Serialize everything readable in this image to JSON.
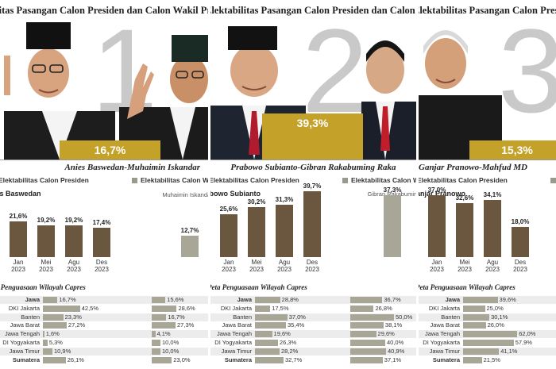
{
  "header_title": "Elektabilitas Pasangan Calon Presiden dan Calon Wakil Presiden",
  "panels": [
    {
      "number": "1",
      "percent": "16,7%",
      "pair_name": "Anies Baswedan-Muhaimin Iskandar",
      "sec_pres": "Elektabilitas Calon Presiden",
      "sec_vp": "Elektabilitas Calon Wakil Presiden",
      "cand_label": "Anies Baswedan",
      "vp_label": "Muhaimin Iskandar",
      "vp_value": "12,7%",
      "vp_num": 12.7,
      "bars": [
        {
          "label": "Jan 2023",
          "value": "21,6%",
          "num": 21.6
        },
        {
          "label": "Mei 2023",
          "value": "19,2%",
          "num": 19.2
        },
        {
          "label": "Agu 2023",
          "value": "19,2%",
          "num": 19.2
        },
        {
          "label": "Des 2023",
          "value": "17,4%",
          "num": 17.4
        }
      ],
      "regions": [
        {
          "name": "Jawa",
          "bold": true,
          "a": "16,7%",
          "an": 16.7,
          "b": "15,6%",
          "bn": 15.6
        },
        {
          "name": "DKI Jakarta",
          "bold": false,
          "a": "42,5%",
          "an": 42.5,
          "b": "28,6%",
          "bn": 28.6
        },
        {
          "name": "Banten",
          "bold": false,
          "a": "23,3%",
          "an": 23.3,
          "b": "16,7%",
          "bn": 16.7
        },
        {
          "name": "Jawa Barat",
          "bold": false,
          "a": "27,2%",
          "an": 27.2,
          "b": "27,3%",
          "bn": 27.3
        },
        {
          "name": "Jawa Tengah",
          "bold": false,
          "a": "1,6%",
          "an": 1.6,
          "b": "4,1%",
          "bn": 4.1
        },
        {
          "name": "DI Yogyakarta",
          "bold": false,
          "a": "5,3%",
          "an": 5.3,
          "b": "10,0%",
          "bn": 10.0
        },
        {
          "name": "Jawa Timur",
          "bold": false,
          "a": "10,9%",
          "an": 10.9,
          "b": "10,0%",
          "bn": 10.0
        },
        {
          "name": "Sumatera",
          "bold": true,
          "a": "26,1%",
          "an": 26.1,
          "b": "23,0%",
          "bn": 23.0
        }
      ]
    },
    {
      "number": "2",
      "percent": "39,3%",
      "pair_name": "Prabowo Subianto-Gibran Rakabuming Raka",
      "sec_pres": "Elektabilitas Calon Presiden",
      "sec_vp": "Elektabilitas Calon Wakil Presiden",
      "cand_label": "Prabowo Subianto",
      "vp_label": "Gibran Rakabuming Raka",
      "vp_value": "37,3%",
      "vp_num": 37.3,
      "bars": [
        {
          "label": "Jan 2023",
          "value": "25,6%",
          "num": 25.6
        },
        {
          "label": "Mei 2023",
          "value": "30,2%",
          "num": 30.2
        },
        {
          "label": "Agu 2023",
          "value": "31,3%",
          "num": 31.3
        },
        {
          "label": "Des 2023",
          "value": "39,7%",
          "num": 39.7
        }
      ],
      "regions": [
        {
          "name": "Jawa",
          "bold": true,
          "a": "28,8%",
          "an": 28.8,
          "b": "36,7%",
          "bn": 36.7
        },
        {
          "name": "DKI Jakarta",
          "bold": false,
          "a": "17,5%",
          "an": 17.5,
          "b": "26,8%",
          "bn": 26.8
        },
        {
          "name": "Banten",
          "bold": false,
          "a": "37,0%",
          "an": 37.0,
          "b": "50,0%",
          "bn": 50.0
        },
        {
          "name": "Jawa Barat",
          "bold": false,
          "a": "35,4%",
          "an": 35.4,
          "b": "38,1%",
          "bn": 38.1
        },
        {
          "name": "Jawa Tengah",
          "bold": false,
          "a": "19,6%",
          "an": 19.6,
          "b": "29,6%",
          "bn": 29.6
        },
        {
          "name": "DI Yogyakarta",
          "bold": false,
          "a": "26,3%",
          "an": 26.3,
          "b": "40,0%",
          "bn": 40.0
        },
        {
          "name": "Jawa Timur",
          "bold": false,
          "a": "28,2%",
          "an": 28.2,
          "b": "40,9%",
          "bn": 40.9
        },
        {
          "name": "Sumatera",
          "bold": true,
          "a": "32,7%",
          "an": 32.7,
          "b": "37,1%",
          "bn": 37.1
        }
      ]
    },
    {
      "number": "3",
      "percent": "15,3%",
      "pair_name": "Ganjar Pranowo-Mahfud MD",
      "sec_pres": "Elektabilitas Calon Presiden",
      "sec_vp": "",
      "cand_label": "Ganjar Pranowo",
      "bars": [
        {
          "label": "Jan 2023",
          "value": "37,0%",
          "num": 37.0
        },
        {
          "label": "Mei 2023",
          "value": "32,6%",
          "num": 32.6
        },
        {
          "label": "Agu 2023",
          "value": "34,1%",
          "num": 34.1
        },
        {
          "label": "Des 2023",
          "value": "18,0%",
          "num": 18.0
        }
      ],
      "regions": [
        {
          "name": "Jawa",
          "bold": true,
          "a": "39,6%",
          "an": 39.6
        },
        {
          "name": "DKI Jakarta",
          "bold": false,
          "a": "25,0%",
          "an": 25.0
        },
        {
          "name": "Banten",
          "bold": false,
          "a": "30,1%",
          "an": 30.1
        },
        {
          "name": "Jawa Barat",
          "bold": false,
          "a": "26,0%",
          "an": 26.0
        },
        {
          "name": "Jawa Tengah",
          "bold": false,
          "a": "62,0%",
          "an": 62.0
        },
        {
          "name": "DI Yogyakarta",
          "bold": false,
          "a": "57,9%",
          "an": 57.9
        },
        {
          "name": "Jawa Timur",
          "bold": false,
          "a": "41,1%",
          "an": 41.1
        },
        {
          "name": "Sumatera",
          "bold": true,
          "a": "21,5%",
          "an": 21.5
        }
      ]
    }
  ],
  "region_title": "Peta Penguasaan Wilayah Capres",
  "colors": {
    "gold": "#c4a22a",
    "bar_dark": "#6b5640",
    "bar_grey": "#a8a797"
  }
}
